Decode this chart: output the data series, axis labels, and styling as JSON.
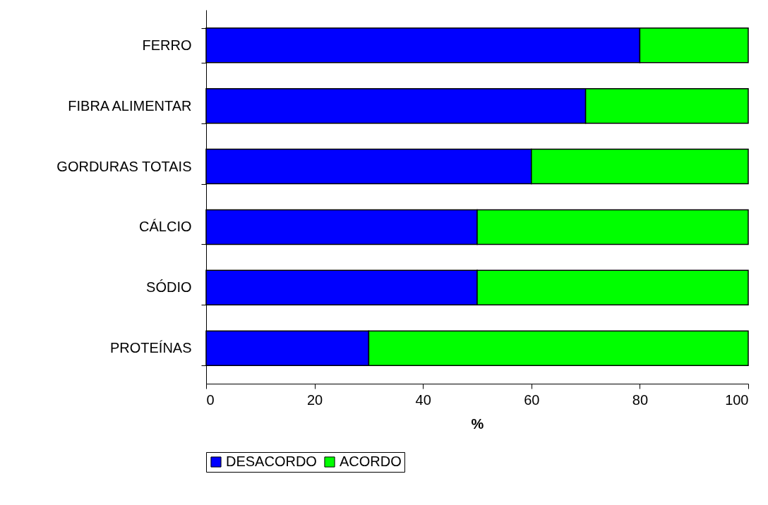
{
  "chart_data": {
    "type": "bar",
    "orientation": "horizontal",
    "stacked": true,
    "xlabel": "%",
    "categories": [
      "FERRO",
      "FIBRA ALIMENTAR",
      "GORDURAS TOTAIS",
      "CÁLCIO",
      "SÓDIO",
      "PROTEÍNAS"
    ],
    "series": [
      {
        "name": "DESACORDO",
        "color": "#0000ff",
        "values": [
          80,
          70,
          60,
          50,
          50,
          30
        ]
      },
      {
        "name": "ACORDO",
        "color": "#00ff00",
        "values": [
          20,
          30,
          40,
          50,
          50,
          70
        ]
      }
    ],
    "xlim": [
      0,
      100
    ],
    "xticks": [
      0,
      20,
      40,
      60,
      80,
      100
    ],
    "grid": false,
    "legend": "bottom"
  }
}
